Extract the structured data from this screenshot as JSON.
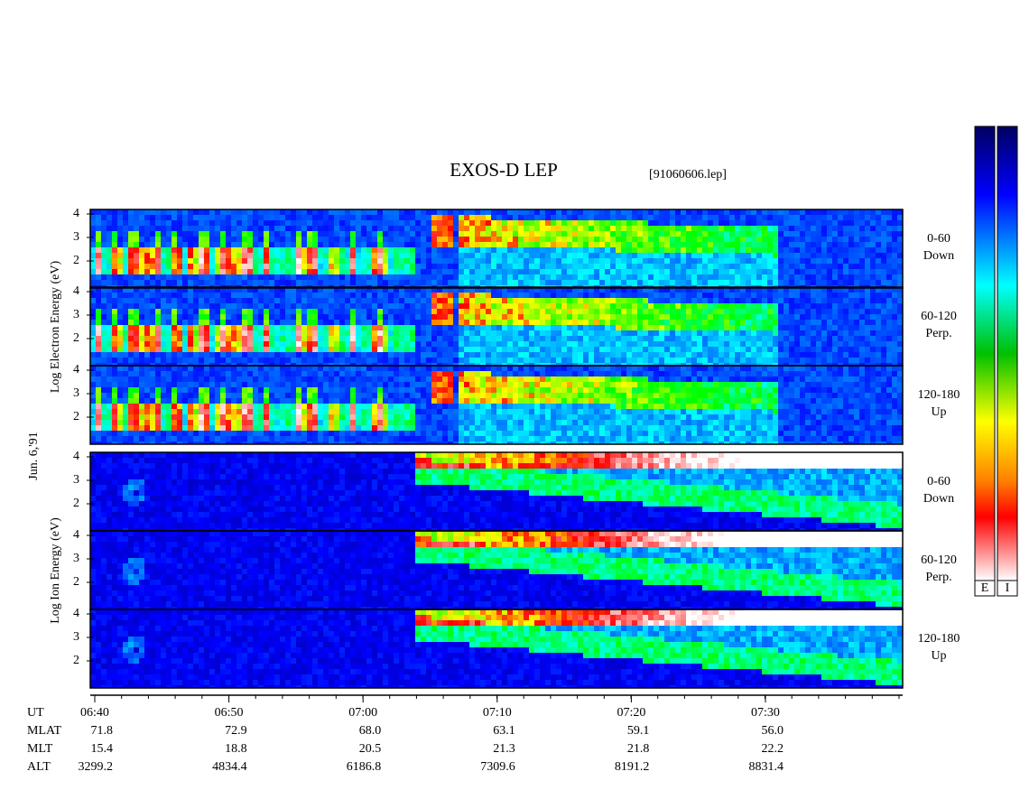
{
  "title": "EXOS-D LEP",
  "file": "[91060606.lep]",
  "date": "Jun. 6,'91",
  "electron_label": "Log Electron Energy (eV)",
  "ion_label": "Log Ion Energy (eV)",
  "panels": [
    {
      "group": "electron",
      "angle": "0-60",
      "direction": "Down",
      "yticks": [
        2,
        3,
        4
      ]
    },
    {
      "group": "electron",
      "angle": "60-120",
      "direction": "Perp.",
      "yticks": [
        2,
        3,
        4
      ]
    },
    {
      "group": "electron",
      "angle": "120-180",
      "direction": "Up",
      "yticks": [
        2,
        3,
        4
      ]
    },
    {
      "group": "ion",
      "angle": "0-60",
      "direction": "Down",
      "yticks": [
        2,
        3,
        4
      ]
    },
    {
      "group": "ion",
      "angle": "60-120",
      "direction": "Perp.",
      "yticks": [
        2,
        3,
        4
      ]
    },
    {
      "group": "ion",
      "angle": "120-180",
      "direction": "Up",
      "yticks": [
        2,
        3,
        4
      ]
    }
  ],
  "colorbars": [
    "E",
    "I"
  ],
  "rows": [
    {
      "name": "UT",
      "values": [
        "06:40",
        "06:50",
        "07:00",
        "07:10",
        "07:20",
        "07:30"
      ]
    },
    {
      "name": "MLAT",
      "values": [
        "71.8",
        "72.9",
        "68.0",
        "63.1",
        "59.1",
        "56.0"
      ]
    },
    {
      "name": "MLT",
      "values": [
        "15.4",
        "18.8",
        "20.5",
        "21.3",
        "21.8",
        "22.2"
      ]
    },
    {
      "name": "ALT",
      "values": [
        "3299.2",
        "4834.4",
        "6186.8",
        "7309.6",
        "8191.2",
        "8831.4"
      ]
    }
  ]
}
